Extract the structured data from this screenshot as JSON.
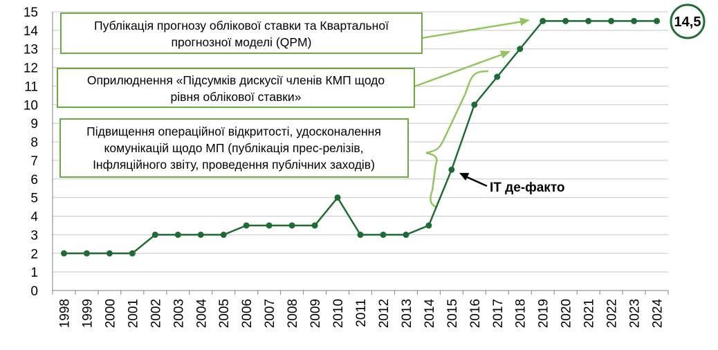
{
  "colors": {
    "line": "#1e6b34",
    "arrow": "#92c560",
    "box_border": "#6aaa42",
    "grid": "#c8c8c8",
    "axis": "#7f7f7f"
  },
  "chart_data": {
    "type": "line",
    "title": "",
    "xlabel": "",
    "ylabel": "",
    "ylim": [
      0,
      15
    ],
    "yticks": [
      0,
      1,
      2,
      3,
      4,
      5,
      6,
      7,
      8,
      9,
      10,
      11,
      12,
      13,
      14,
      15
    ],
    "grid": "horizontal",
    "categories": [
      "1998",
      "1999",
      "2000",
      "2001",
      "2002",
      "2003",
      "2004",
      "2005",
      "2006",
      "2007",
      "2008",
      "2009",
      "2010",
      "2011",
      "2012",
      "2013",
      "2014",
      "2015",
      "2016",
      "2017",
      "2018",
      "2019",
      "2020",
      "2021",
      "2022",
      "2023",
      "2024"
    ],
    "series": [
      {
        "values": [
          2,
          2,
          2,
          2,
          3,
          3,
          3,
          3,
          3.5,
          3.5,
          3.5,
          3.5,
          5,
          3,
          3,
          3,
          3.5,
          6.5,
          10,
          11.5,
          13,
          14.5,
          14.5,
          14.5,
          14.5,
          14.5,
          14.5
        ]
      }
    ],
    "end_label": "14,5",
    "annotations": [
      {
        "id": "qpm",
        "lines": [
          "Публікація прогнозу облікової ставки та Квартальної",
          "прогнозної моделі (QPM)"
        ]
      },
      {
        "id": "kmp",
        "lines": [
          "Оприлюднення «Підсумків дискусії членів КМП щодо",
          "рівня облікової ставки»"
        ]
      },
      {
        "id": "transparency",
        "lines": [
          "Підвищення операційної відкритості, удосконалення",
          "комунікацій щодо МП (публікація прес-релізів,",
          "Інфляційного звіту, проведення публічних заходів)"
        ]
      }
    ],
    "it_label": "ІТ де-факто"
  }
}
